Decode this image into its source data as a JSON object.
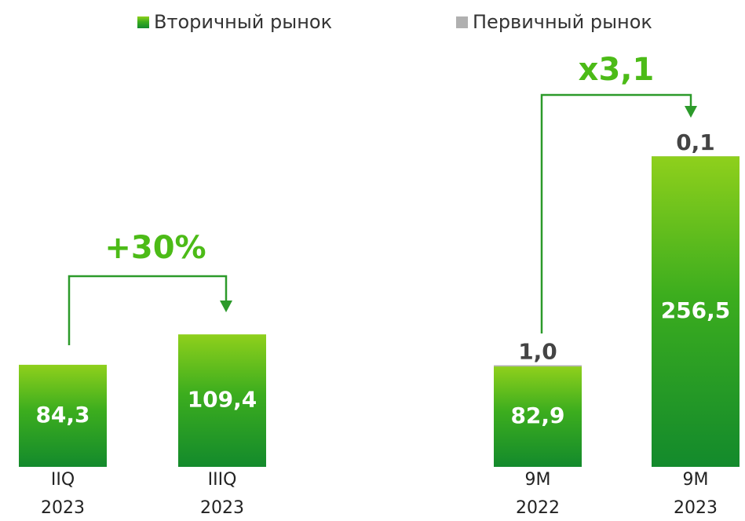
{
  "chart_data": {
    "type": "bar",
    "stacked": true,
    "categories": [
      [
        "IIQ",
        "2023"
      ],
      [
        "IIIQ",
        "2023"
      ],
      [
        "9M",
        "2022"
      ],
      [
        "9M",
        "2023"
      ]
    ],
    "series": [
      {
        "name": "Вторичный рынок",
        "color": "#3cad1e",
        "values": [
          84.3,
          109.4,
          82.9,
          256.5
        ],
        "value_labels": [
          "84,3",
          "109,4",
          "82,9",
          "256,5"
        ]
      },
      {
        "name": "Первичный рынок",
        "color": "#b0b0b0",
        "values": [
          null,
          null,
          1.0,
          0.1
        ],
        "value_labels": [
          null,
          null,
          "1,0",
          "0,1"
        ]
      }
    ],
    "annotations": [
      {
        "text": "+30%"
      },
      {
        "text": "x3,1"
      }
    ]
  }
}
